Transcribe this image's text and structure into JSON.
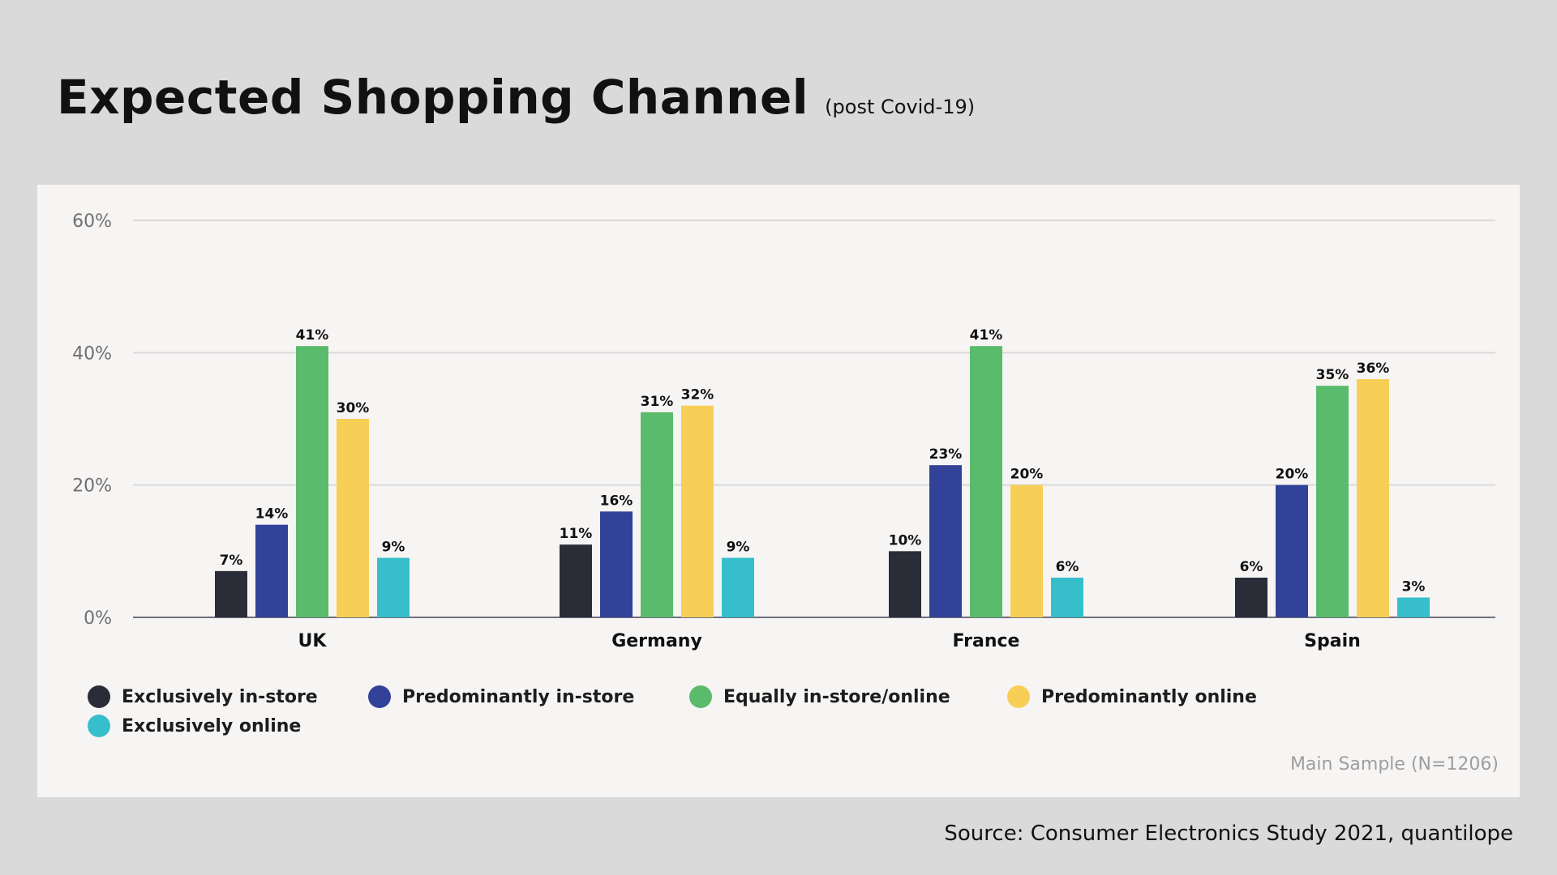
{
  "header": {
    "title": "Expected Shopping Channel",
    "subtitle": "(post Covid-19)"
  },
  "chart_data": {
    "type": "bar",
    "title": "Expected Shopping Channel",
    "subtitle": "(post Covid-19)",
    "categories": [
      "UK",
      "Germany",
      "France",
      "Spain"
    ],
    "series": [
      {
        "name": "Exclusively in-store",
        "color": "#2a2d37",
        "values": [
          7,
          11,
          10,
          6
        ]
      },
      {
        "name": "Predominantly in-store",
        "color": "#324299",
        "values": [
          14,
          16,
          23,
          20
        ]
      },
      {
        "name": "Equally in-store/online",
        "color": "#59bb6b",
        "values": [
          41,
          31,
          41,
          35
        ]
      },
      {
        "name": "Predominantly online",
        "color": "#f7cf57",
        "values": [
          30,
          32,
          20,
          36
        ]
      },
      {
        "name": "Exclusively online",
        "color": "#36bfca",
        "values": [
          9,
          9,
          6,
          3
        ]
      }
    ],
    "value_labels": [
      [
        "7%",
        "11%",
        "10%",
        "6%"
      ],
      [
        "14%",
        "16%",
        "23%",
        "20%"
      ],
      [
        "41%",
        "31%",
        "41%",
        "35%"
      ],
      [
        "30%",
        "32%",
        "20%",
        "36%"
      ],
      [
        "9%",
        "9%",
        "6%",
        "3%"
      ]
    ],
    "yticks": [
      0,
      20,
      40,
      60
    ],
    "ytick_labels": [
      "0%",
      "20%",
      "40%",
      "60%"
    ],
    "ylim": [
      0,
      60
    ],
    "xlabel": "",
    "ylabel": "",
    "grid": true,
    "legend_position": "bottom-left"
  },
  "footer": {
    "sample": "Main Sample (N=1206)",
    "source": "Source: Consumer Electronics Study 2021, quantilope"
  }
}
